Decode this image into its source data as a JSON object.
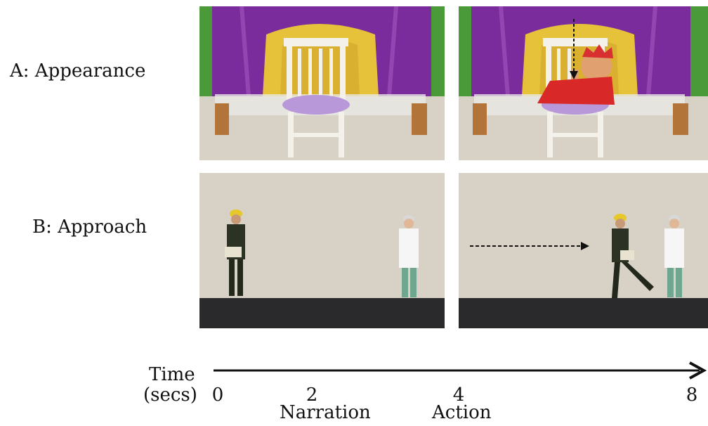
{
  "rows": [
    {
      "label": "A: Appearance"
    },
    {
      "label": "B: Approach"
    }
  ],
  "timeline": {
    "title_line1": "Time",
    "title_line2": "(secs)",
    "ticks": [
      "0",
      "2",
      "4",
      "8"
    ],
    "phases": [
      "Narration",
      "Action"
    ]
  }
}
